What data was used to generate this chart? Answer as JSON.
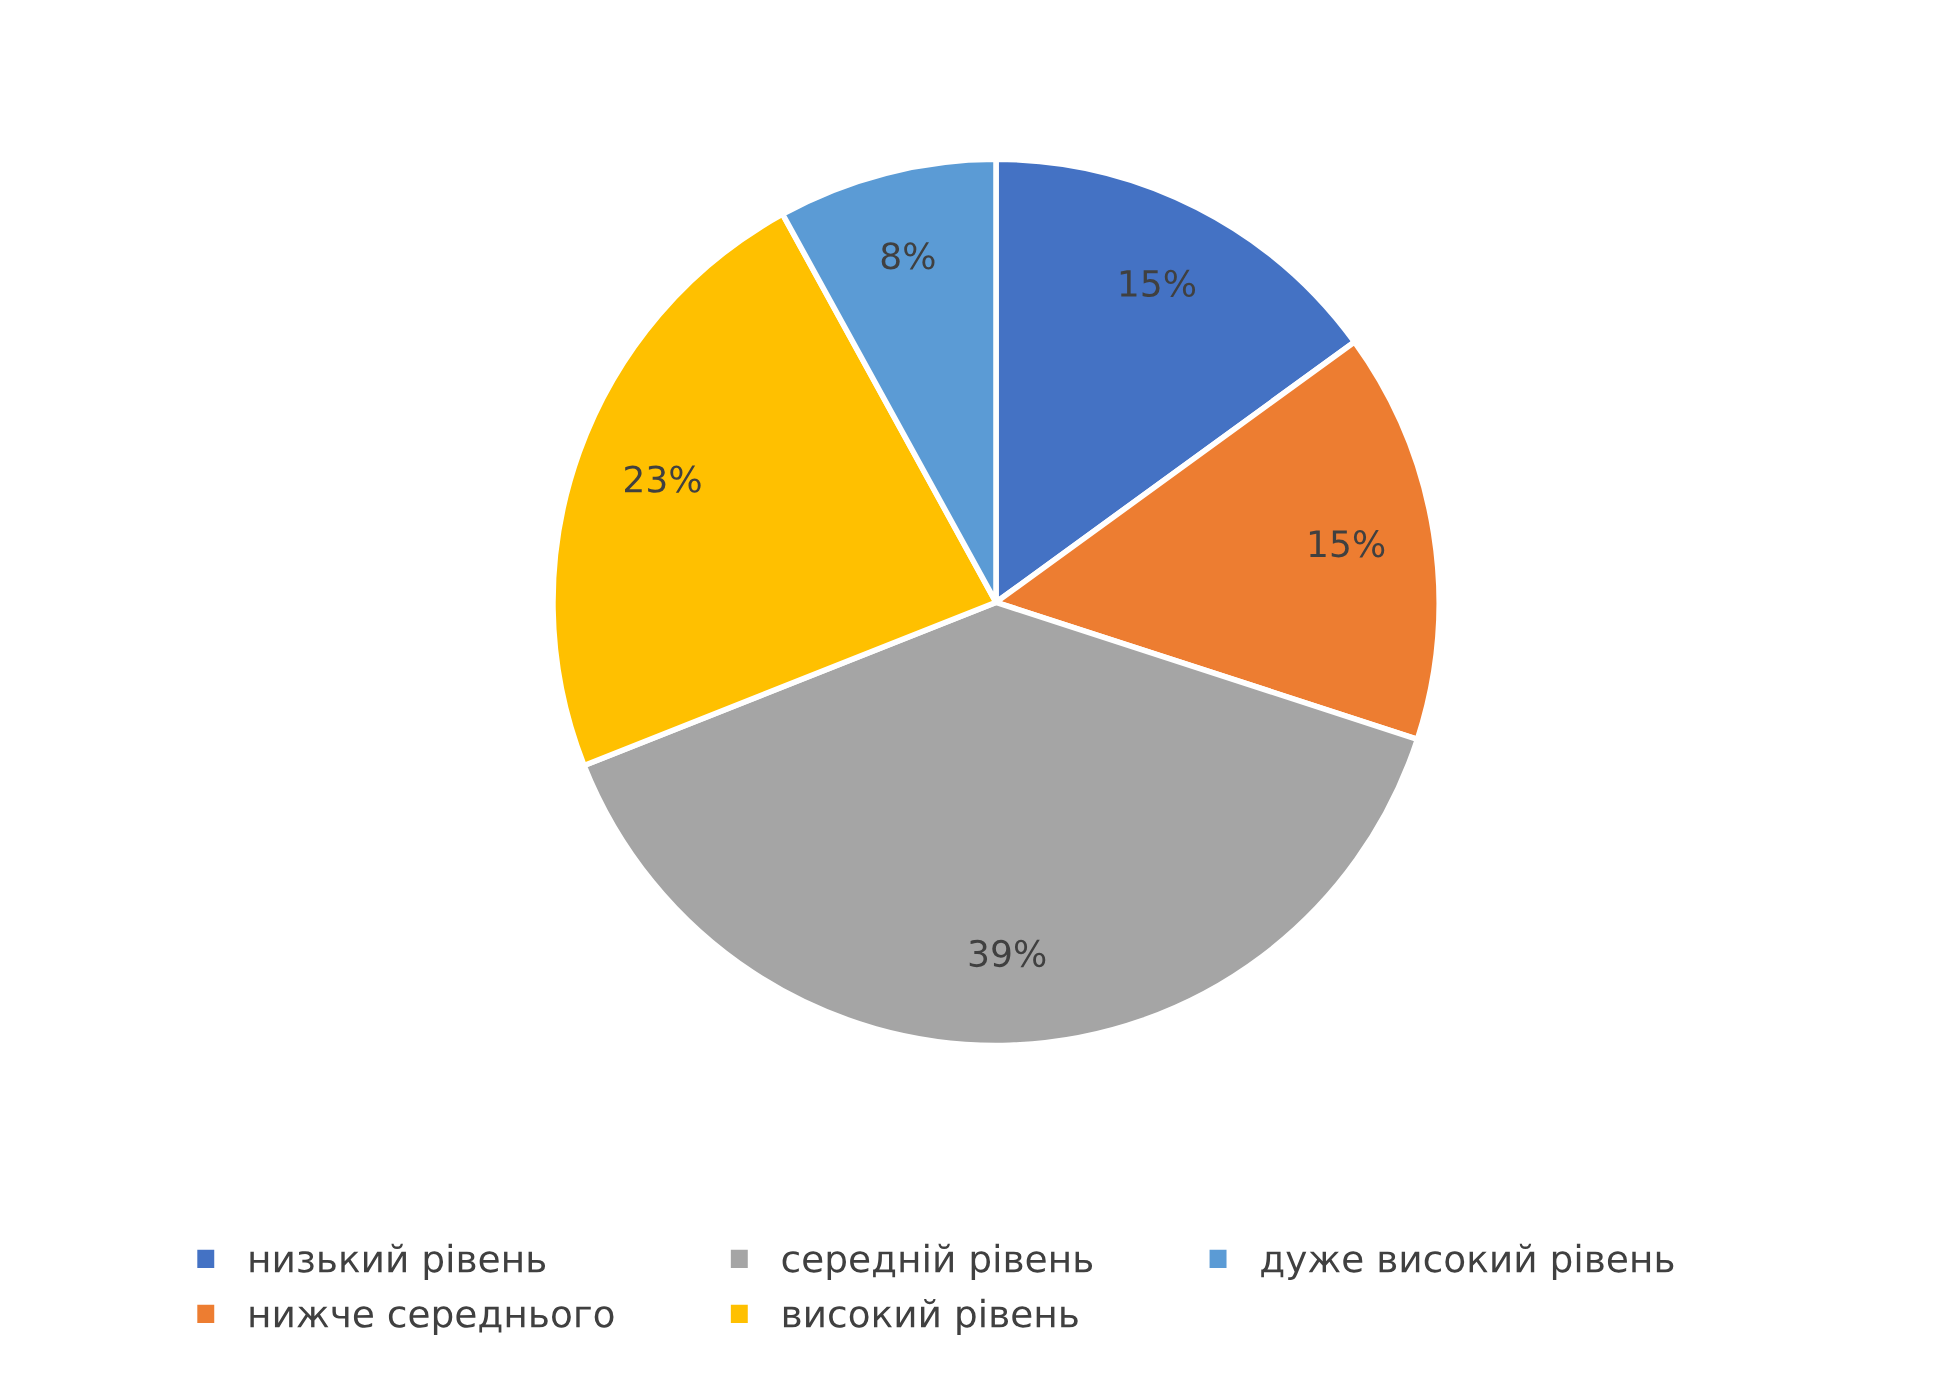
{
  "chart_data": {
    "type": "pie",
    "categories": [
      "низький рівень",
      "нижче середнього",
      "середній рівень",
      "високий рівень",
      "дуже високий рівень"
    ],
    "values": [
      15,
      15,
      39,
      23,
      8
    ],
    "colors": [
      "#4472c4",
      "#ed7d31",
      "#a5a5a5",
      "#ffc000",
      "#5b9bd5"
    ],
    "value_labels": [
      "15%",
      "15%",
      "39%",
      "23%",
      "8%"
    ],
    "legend": "bottom"
  }
}
